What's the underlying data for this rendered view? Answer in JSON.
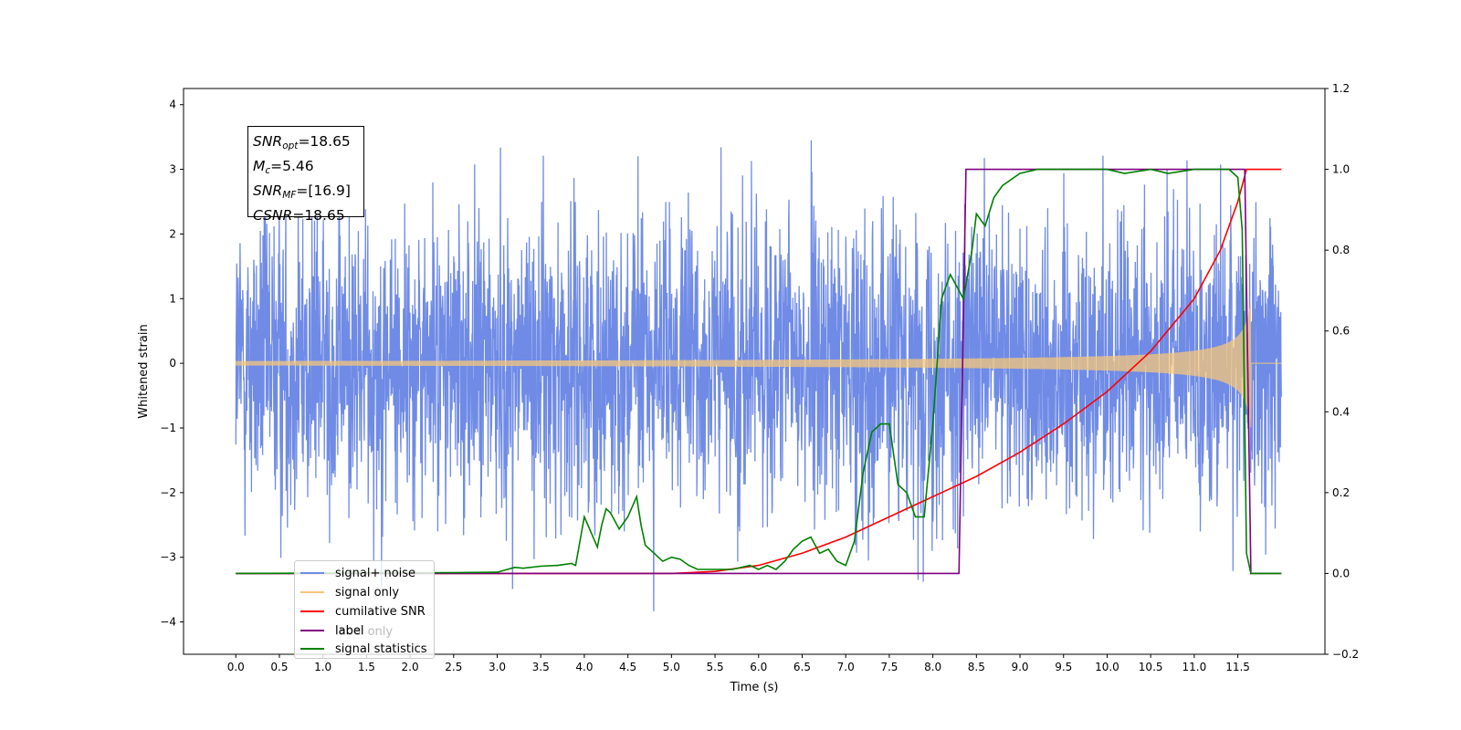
{
  "chart_data": {
    "type": "line",
    "xlabel": "Time (s)",
    "ylabel_left": "Whitened strain",
    "ylabel_right": "",
    "x_ticks": [
      "0.0",
      "0.5",
      "1.0",
      "1.5",
      "2.0",
      "2.5",
      "3.0",
      "3.5",
      "4.0",
      "4.5",
      "5.0",
      "5.5",
      "6.0",
      "6.5",
      "7.0",
      "7.5",
      "8.0",
      "8.5",
      "9.0",
      "9.5",
      "10.0",
      "10.5",
      "11.0",
      "11.5"
    ],
    "xlim": [
      -0.6,
      12.5
    ],
    "ylim_left": [
      -4.5,
      4.25
    ],
    "ylim_right": [
      -0.2,
      1.2
    ],
    "y_ticks_left": [
      "−4",
      "−3",
      "−2",
      "−1",
      "0",
      "1",
      "2",
      "3",
      "4"
    ],
    "y_ticks_right": [
      "−0.2",
      "0.0",
      "0.2",
      "0.4",
      "0.6",
      "0.8",
      "1.0",
      "1.2"
    ],
    "grid": false,
    "legend_position": "lower-left",
    "series": [
      {
        "name": "signal+ noise",
        "axis": "left",
        "color": "#6f8be6",
        "kind": "noise",
        "x_range": [
          0.0,
          12.0
        ],
        "amplitude_range": [
          -4.1,
          3.85
        ]
      },
      {
        "name": "signal only",
        "axis": "left",
        "color": "#f5c77a",
        "kind": "chirp",
        "x_range": [
          0.0,
          11.65
        ],
        "peak_amplitude": 1.0
      },
      {
        "name": "cumilative SNR",
        "axis": "right",
        "color": "#ff0000",
        "x": [
          0.0,
          5.0,
          5.5,
          6.0,
          6.5,
          7.0,
          7.5,
          8.0,
          8.5,
          9.0,
          9.5,
          10.0,
          10.5,
          11.0,
          11.3,
          11.5,
          11.6,
          12.0
        ],
        "y": [
          0.0,
          0.0,
          0.005,
          0.02,
          0.05,
          0.09,
          0.14,
          0.19,
          0.24,
          0.3,
          0.37,
          0.45,
          0.55,
          0.68,
          0.8,
          0.92,
          1.0,
          1.0
        ]
      },
      {
        "name": "label",
        "axis": "right",
        "color": "#800080",
        "x": [
          0.0,
          8.3,
          8.38,
          11.58,
          11.65,
          12.0
        ],
        "y": [
          0.0,
          0.0,
          1.0,
          1.0,
          0.0,
          0.0
        ]
      },
      {
        "name": "label only",
        "axis": "right",
        "color": "#800080",
        "hidden_in_plot": true
      },
      {
        "name": "signal statistics",
        "axis": "right",
        "color": "#008000",
        "x": [
          0.0,
          2.5,
          3.0,
          3.2,
          3.3,
          3.5,
          3.7,
          3.85,
          3.9,
          4.0,
          4.1,
          4.15,
          4.2,
          4.25,
          4.3,
          4.4,
          4.5,
          4.6,
          4.65,
          4.7,
          4.8,
          4.9,
          5.0,
          5.1,
          5.2,
          5.3,
          5.5,
          5.7,
          5.9,
          6.0,
          6.1,
          6.2,
          6.3,
          6.4,
          6.5,
          6.6,
          6.7,
          6.8,
          6.9,
          7.0,
          7.1,
          7.2,
          7.3,
          7.4,
          7.5,
          7.6,
          7.7,
          7.8,
          7.9,
          8.0,
          8.1,
          8.2,
          8.3,
          8.35,
          8.45,
          8.5,
          8.6,
          8.7,
          8.8,
          9.0,
          9.2,
          9.5,
          10.0,
          10.2,
          10.5,
          10.7,
          11.0,
          11.3,
          11.4,
          11.5,
          11.55,
          11.6,
          11.65,
          11.7,
          12.0
        ],
        "y": [
          0.0,
          0.002,
          0.003,
          0.015,
          0.013,
          0.018,
          0.02,
          0.025,
          0.02,
          0.14,
          0.09,
          0.065,
          0.12,
          0.16,
          0.15,
          0.11,
          0.14,
          0.19,
          0.12,
          0.07,
          0.05,
          0.03,
          0.04,
          0.035,
          0.02,
          0.01,
          0.01,
          0.01,
          0.02,
          0.01,
          0.02,
          0.01,
          0.03,
          0.06,
          0.08,
          0.09,
          0.05,
          0.06,
          0.03,
          0.02,
          0.08,
          0.25,
          0.35,
          0.37,
          0.37,
          0.22,
          0.2,
          0.14,
          0.14,
          0.37,
          0.68,
          0.74,
          0.7,
          0.68,
          0.8,
          0.89,
          0.86,
          0.93,
          0.96,
          0.99,
          1.0,
          1.0,
          1.0,
          0.99,
          1.0,
          0.99,
          1.0,
          1.0,
          1.0,
          0.98,
          0.85,
          0.05,
          0.0,
          0.0,
          0.0
        ]
      }
    ],
    "annotation_box": {
      "lines": [
        {
          "symbol": "SNR",
          "subscript": "opt",
          "value": "=18.65"
        },
        {
          "symbol": "M",
          "subscript": "c",
          "value": "=5.46"
        },
        {
          "symbol": "SNR",
          "subscript": "MF",
          "value": "=[16.9]"
        },
        {
          "symbol": "CSNR",
          "subscript": "",
          "value": "=18.65"
        }
      ]
    }
  }
}
